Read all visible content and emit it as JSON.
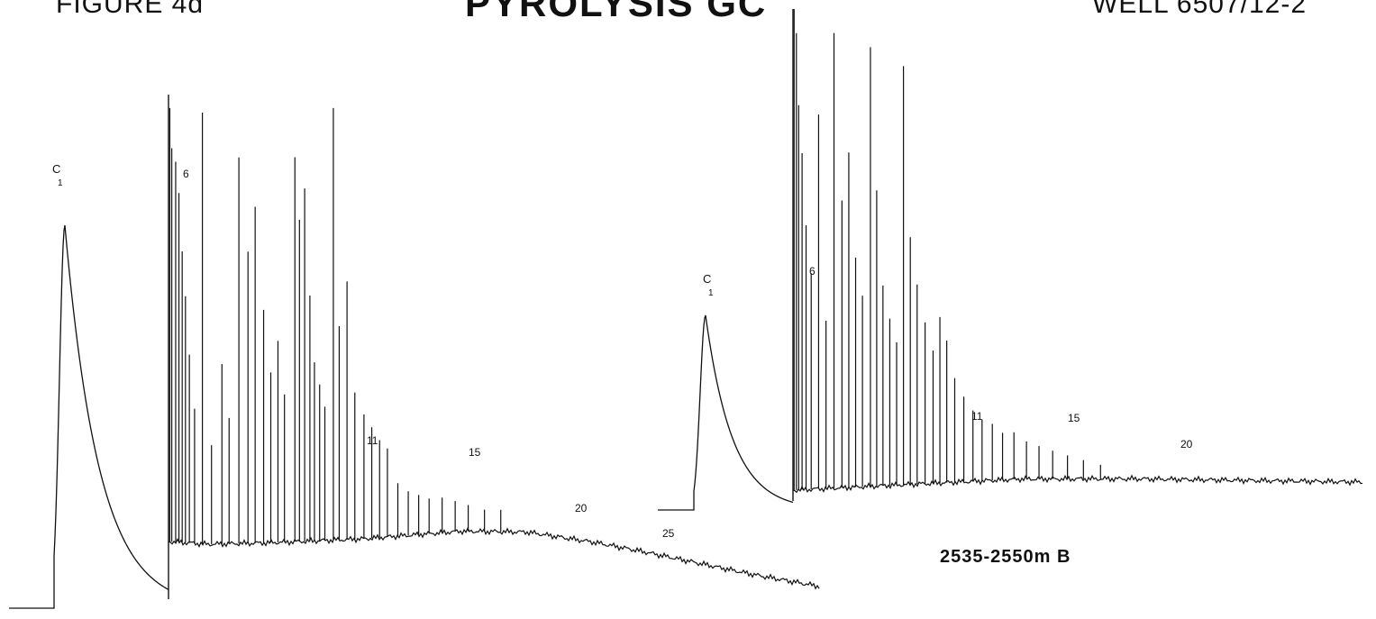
{
  "header": {
    "figure_label": "FIGURE 4d",
    "title": "PYROLYSIS GC",
    "well": "WELL 6507/12-2"
  },
  "sample_label": "2535-2550m B",
  "chart_data": [
    {
      "type": "line",
      "title": "",
      "xlabel": "",
      "ylabel": "",
      "grid": false,
      "peak_labels": [
        "C1",
        "6",
        "11",
        "15",
        "20",
        "25"
      ],
      "c1": {
        "amplitude": 0.73
      },
      "baseline_hump": [
        {
          "x": 0.06,
          "y": 0.02
        },
        {
          "x": 0.15,
          "y": 0.05
        },
        {
          "x": 0.3,
          "y": 0.11
        },
        {
          "x": 0.45,
          "y": 0.19
        },
        {
          "x": 0.55,
          "y": 0.21
        },
        {
          "x": 0.65,
          "y": 0.18
        },
        {
          "x": 0.72,
          "y": 0.15
        },
        {
          "x": 0.82,
          "y": 0.1
        },
        {
          "x": 0.9,
          "y": 0.06
        },
        {
          "x": 1.0,
          "y": 0.02
        }
      ],
      "peaks": [
        {
          "x": 0.002,
          "h": 0.97
        },
        {
          "x": 0.005,
          "h": 0.88
        },
        {
          "x": 0.011,
          "h": 0.85
        },
        {
          "x": 0.016,
          "h": 0.78
        },
        {
          "x": 0.021,
          "h": 0.65
        },
        {
          "x": 0.026,
          "h": 0.55
        },
        {
          "x": 0.032,
          "h": 0.42
        },
        {
          "x": 0.04,
          "h": 0.3
        },
        {
          "x": 0.052,
          "h": 0.96
        },
        {
          "x": 0.066,
          "h": 0.22
        },
        {
          "x": 0.082,
          "h": 0.4
        },
        {
          "x": 0.093,
          "h": 0.28
        },
        {
          "x": 0.108,
          "h": 0.86
        },
        {
          "x": 0.122,
          "h": 0.65
        },
        {
          "x": 0.133,
          "h": 0.75
        },
        {
          "x": 0.146,
          "h": 0.52
        },
        {
          "x": 0.157,
          "h": 0.38
        },
        {
          "x": 0.168,
          "h": 0.45
        },
        {
          "x": 0.178,
          "h": 0.33
        },
        {
          "x": 0.194,
          "h": 0.86
        },
        {
          "x": 0.201,
          "h": 0.72
        },
        {
          "x": 0.209,
          "h": 0.79
        },
        {
          "x": 0.217,
          "h": 0.55
        },
        {
          "x": 0.224,
          "h": 0.4
        },
        {
          "x": 0.232,
          "h": 0.35
        },
        {
          "x": 0.24,
          "h": 0.3
        },
        {
          "x": 0.253,
          "h": 0.97
        },
        {
          "x": 0.262,
          "h": 0.48
        },
        {
          "x": 0.274,
          "h": 0.58
        },
        {
          "x": 0.286,
          "h": 0.33
        },
        {
          "x": 0.3,
          "h": 0.28
        },
        {
          "x": 0.312,
          "h": 0.25
        },
        {
          "x": 0.324,
          "h": 0.22
        },
        {
          "x": 0.336,
          "h": 0.2
        },
        {
          "x": 0.352,
          "h": 0.12
        },
        {
          "x": 0.368,
          "h": 0.1
        },
        {
          "x": 0.384,
          "h": 0.09
        },
        {
          "x": 0.4,
          "h": 0.08
        },
        {
          "x": 0.42,
          "h": 0.08
        },
        {
          "x": 0.44,
          "h": 0.07
        },
        {
          "x": 0.46,
          "h": 0.06
        },
        {
          "x": 0.485,
          "h": 0.05
        },
        {
          "x": 0.51,
          "h": 0.05
        }
      ]
    },
    {
      "type": "line",
      "title": "",
      "xlabel": "",
      "ylabel": "",
      "grid": false,
      "peak_labels": [
        "C1",
        "6",
        "11",
        "15",
        "20"
      ],
      "c1": {
        "amplitude": 0.48
      },
      "baseline_hump": [
        {
          "x": 0.0,
          "y": 0.01
        },
        {
          "x": 0.2,
          "y": 0.03
        },
        {
          "x": 0.4,
          "y": 0.05
        },
        {
          "x": 0.6,
          "y": 0.04
        },
        {
          "x": 0.8,
          "y": 0.02
        },
        {
          "x": 1.0,
          "y": 0.0
        }
      ],
      "peaks": [
        {
          "x": 0.002,
          "h": 1.0
        },
        {
          "x": 0.006,
          "h": 0.95
        },
        {
          "x": 0.01,
          "h": 0.8
        },
        {
          "x": 0.016,
          "h": 0.7
        },
        {
          "x": 0.023,
          "h": 0.55
        },
        {
          "x": 0.032,
          "h": 0.45
        },
        {
          "x": 0.045,
          "h": 0.78
        },
        {
          "x": 0.058,
          "h": 0.35
        },
        {
          "x": 0.072,
          "h": 0.95
        },
        {
          "x": 0.086,
          "h": 0.6
        },
        {
          "x": 0.098,
          "h": 0.7
        },
        {
          "x": 0.11,
          "h": 0.48
        },
        {
          "x": 0.122,
          "h": 0.4
        },
        {
          "x": 0.136,
          "h": 0.92
        },
        {
          "x": 0.147,
          "h": 0.62
        },
        {
          "x": 0.158,
          "h": 0.42
        },
        {
          "x": 0.17,
          "h": 0.35
        },
        {
          "x": 0.182,
          "h": 0.3
        },
        {
          "x": 0.194,
          "h": 0.88
        },
        {
          "x": 0.206,
          "h": 0.52
        },
        {
          "x": 0.218,
          "h": 0.42
        },
        {
          "x": 0.232,
          "h": 0.34
        },
        {
          "x": 0.246,
          "h": 0.28
        },
        {
          "x": 0.258,
          "h": 0.35
        },
        {
          "x": 0.27,
          "h": 0.3
        },
        {
          "x": 0.284,
          "h": 0.22
        },
        {
          "x": 0.3,
          "h": 0.18
        },
        {
          "x": 0.316,
          "h": 0.15
        },
        {
          "x": 0.332,
          "h": 0.13
        },
        {
          "x": 0.35,
          "h": 0.12
        },
        {
          "x": 0.368,
          "h": 0.1
        },
        {
          "x": 0.388,
          "h": 0.1
        },
        {
          "x": 0.41,
          "h": 0.08
        },
        {
          "x": 0.432,
          "h": 0.07
        },
        {
          "x": 0.456,
          "h": 0.06
        },
        {
          "x": 0.482,
          "h": 0.05
        },
        {
          "x": 0.51,
          "h": 0.04
        },
        {
          "x": 0.54,
          "h": 0.03
        }
      ]
    }
  ]
}
